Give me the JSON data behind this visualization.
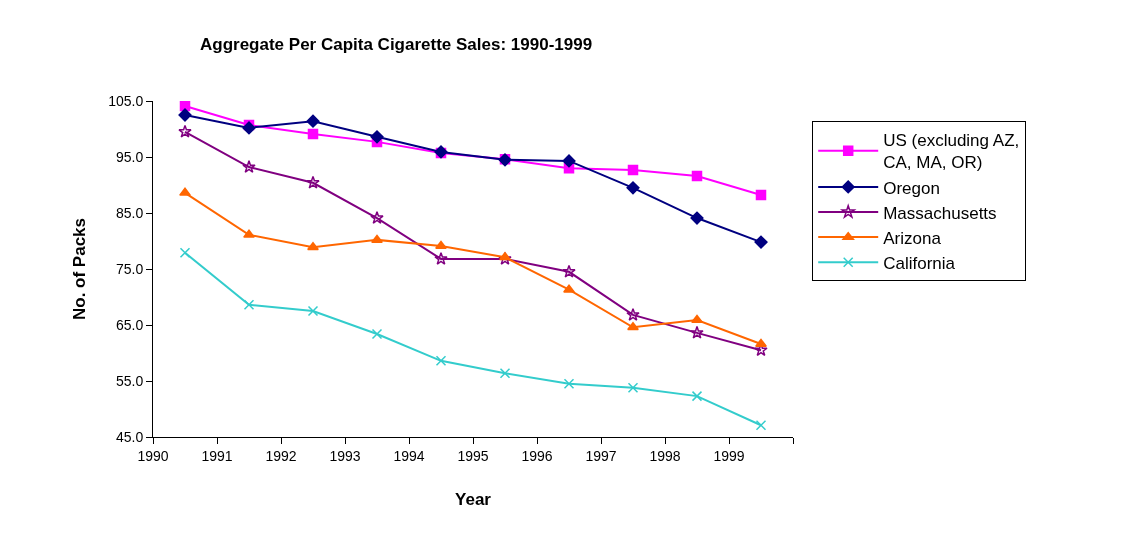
{
  "chart_data": {
    "type": "line",
    "title": "Aggregate Per Capita Cigarette Sales: 1990-1999",
    "xlabel": "Year",
    "ylabel": "No. of Packs",
    "x": [
      1990.5,
      1991.5,
      1992.5,
      1993.5,
      1994.5,
      1995.5,
      1996.5,
      1997.5,
      1998.5,
      1999.5
    ],
    "series": [
      {
        "name": "US (excluding AZ, CA, MA, OR)",
        "color": "#ff00ff",
        "marker": "square",
        "values": [
          104.1,
          100.7,
          99.1,
          97.7,
          95.7,
          94.6,
          93.0,
          92.7,
          91.6,
          88.2
        ]
      },
      {
        "name": "Oregon",
        "color": "#000080",
        "marker": "diamond",
        "values": [
          102.5,
          100.2,
          101.4,
          98.6,
          95.9,
          94.5,
          94.3,
          89.5,
          84.1,
          79.8
        ]
      },
      {
        "name": "Massachusetts",
        "color": "#800080",
        "marker": "star",
        "values": [
          99.5,
          93.2,
          90.4,
          84.1,
          76.8,
          76.8,
          74.5,
          66.8,
          63.6,
          60.5
        ]
      },
      {
        "name": "Arizona",
        "color": "#ff6600",
        "marker": "triangle",
        "values": [
          88.6,
          81.1,
          78.9,
          80.2,
          79.1,
          77.1,
          71.3,
          64.6,
          65.9,
          61.6
        ]
      },
      {
        "name": "California",
        "color": "#33cccc",
        "marker": "cross",
        "values": [
          77.9,
          68.6,
          67.5,
          63.4,
          58.6,
          56.4,
          54.5,
          53.8,
          52.3,
          47.1
        ]
      }
    ],
    "xlim": [
      1990,
      2000
    ],
    "xticks": [
      1990,
      1991,
      1992,
      1993,
      1994,
      1995,
      1996,
      1997,
      1998,
      1999,
      {
        "value": 2000,
        "label": null
      }
    ],
    "ylim": [
      45,
      105
    ],
    "yticks": [
      {
        "value": 45,
        "label": "45.0"
      },
      {
        "value": 55,
        "label": "55.0"
      },
      {
        "value": 65,
        "label": "65.0"
      },
      {
        "value": 75,
        "label": "75.0"
      },
      {
        "value": 85,
        "label": "85.0"
      },
      {
        "value": 95,
        "label": "95.0"
      },
      {
        "value": 105,
        "label": "105.0"
      }
    ],
    "grid": false,
    "legend": "right",
    "line_style": "solid"
  }
}
